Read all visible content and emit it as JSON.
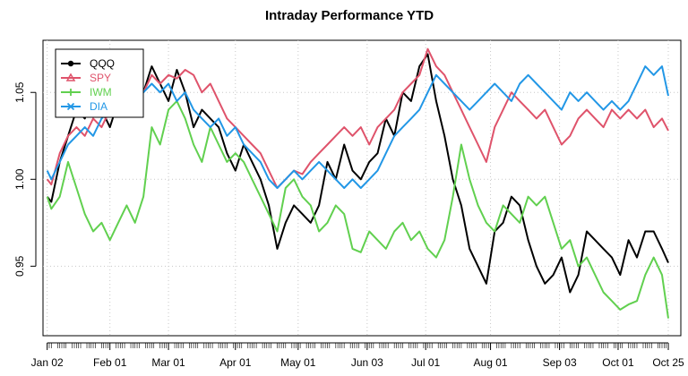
{
  "chart_data": {
    "type": "line",
    "title": "Intraday Performance YTD",
    "xlabel": "",
    "ylabel": "",
    "x_tick_labels": [
      "Jan 02",
      "Feb 01",
      "Mar 01",
      "Apr 01",
      "May 01",
      "Jun 03",
      "Jul 01",
      "Aug 01",
      "Sep 03",
      "Oct 01",
      "Oct 25"
    ],
    "x_tick_days": [
      2,
      32,
      60,
      92,
      122,
      155,
      183,
      214,
      247,
      275,
      299
    ],
    "xlim": [
      0,
      305
    ],
    "y_ticks": [
      0.95,
      1.0,
      1.05
    ],
    "y_tick_labels": [
      "0.95",
      "1.00",
      "1.05"
    ],
    "ylim": [
      0.91,
      1.08
    ],
    "grid": true,
    "legend_position": "top-left",
    "series": [
      {
        "name": "QQQ",
        "color": "#000000",
        "marker": "circle",
        "x": [
          2,
          4,
          8,
          12,
          16,
          20,
          24,
          28,
          32,
          36,
          40,
          44,
          48,
          52,
          56,
          60,
          64,
          68,
          72,
          76,
          80,
          84,
          88,
          92,
          96,
          100,
          104,
          108,
          112,
          116,
          120,
          124,
          128,
          132,
          136,
          140,
          144,
          148,
          152,
          156,
          160,
          164,
          168,
          172,
          176,
          180,
          184,
          188,
          192,
          196,
          200,
          204,
          208,
          212,
          216,
          220,
          224,
          228,
          232,
          236,
          240,
          244,
          248,
          252,
          256,
          260,
          264,
          268,
          272,
          276,
          280,
          284,
          288,
          292,
          296,
          299
        ],
        "y": [
          0.99,
          0.987,
          1.01,
          1.025,
          1.04,
          1.035,
          1.05,
          1.04,
          1.03,
          1.045,
          1.05,
          1.06,
          1.05,
          1.065,
          1.055,
          1.045,
          1.063,
          1.05,
          1.03,
          1.04,
          1.035,
          1.03,
          1.015,
          1.005,
          1.02,
          1.01,
          1.0,
          0.985,
          0.96,
          0.975,
          0.985,
          0.98,
          0.975,
          0.985,
          1.01,
          1.0,
          1.02,
          1.005,
          1.0,
          1.01,
          1.015,
          1.035,
          1.025,
          1.05,
          1.045,
          1.065,
          1.072,
          1.045,
          1.025,
          1.0,
          0.985,
          0.96,
          0.95,
          0.94,
          0.97,
          0.975,
          0.99,
          0.985,
          0.965,
          0.95,
          0.94,
          0.945,
          0.955,
          0.935,
          0.945,
          0.97,
          0.965,
          0.96,
          0.955,
          0.945,
          0.965,
          0.955,
          0.97,
          0.97,
          0.96,
          0.952
        ]
      },
      {
        "name": "SPY",
        "color": "#DF536B",
        "marker": "triangle",
        "x": [
          2,
          4,
          8,
          12,
          16,
          20,
          24,
          28,
          32,
          36,
          40,
          44,
          48,
          52,
          56,
          60,
          64,
          68,
          72,
          76,
          80,
          84,
          88,
          92,
          96,
          100,
          104,
          108,
          112,
          116,
          120,
          124,
          128,
          132,
          136,
          140,
          144,
          148,
          152,
          156,
          160,
          164,
          168,
          172,
          176,
          180,
          184,
          188,
          192,
          196,
          200,
          204,
          208,
          212,
          216,
          220,
          224,
          228,
          232,
          236,
          240,
          244,
          248,
          252,
          256,
          260,
          264,
          268,
          272,
          276,
          280,
          284,
          288,
          292,
          296,
          299
        ],
        "y": [
          1.0,
          0.997,
          1.015,
          1.025,
          1.03,
          1.025,
          1.035,
          1.03,
          1.04,
          1.045,
          1.04,
          1.05,
          1.05,
          1.06,
          1.055,
          1.06,
          1.058,
          1.063,
          1.06,
          1.05,
          1.055,
          1.045,
          1.035,
          1.03,
          1.025,
          1.02,
          1.015,
          1.005,
          0.995,
          1.0,
          1.005,
          1.003,
          1.01,
          1.015,
          1.02,
          1.025,
          1.03,
          1.025,
          1.03,
          1.02,
          1.03,
          1.035,
          1.04,
          1.05,
          1.055,
          1.06,
          1.075,
          1.065,
          1.06,
          1.05,
          1.04,
          1.03,
          1.02,
          1.01,
          1.03,
          1.04,
          1.05,
          1.045,
          1.04,
          1.035,
          1.04,
          1.03,
          1.02,
          1.025,
          1.035,
          1.04,
          1.035,
          1.03,
          1.04,
          1.035,
          1.04,
          1.035,
          1.04,
          1.03,
          1.035,
          1.028
        ]
      },
      {
        "name": "IWM",
        "color": "#61D04F",
        "marker": "plus",
        "x": [
          2,
          4,
          8,
          12,
          16,
          20,
          24,
          28,
          32,
          36,
          40,
          44,
          48,
          52,
          56,
          60,
          64,
          68,
          72,
          76,
          80,
          84,
          88,
          92,
          96,
          100,
          104,
          108,
          112,
          116,
          120,
          124,
          128,
          132,
          136,
          140,
          144,
          148,
          152,
          156,
          160,
          164,
          168,
          172,
          176,
          180,
          184,
          188,
          192,
          196,
          200,
          204,
          208,
          212,
          216,
          220,
          224,
          228,
          232,
          236,
          240,
          244,
          248,
          252,
          256,
          260,
          264,
          268,
          272,
          276,
          280,
          284,
          288,
          292,
          296,
          299
        ],
        "y": [
          0.99,
          0.983,
          0.99,
          1.01,
          0.995,
          0.98,
          0.97,
          0.975,
          0.965,
          0.975,
          0.985,
          0.975,
          0.99,
          1.03,
          1.02,
          1.04,
          1.045,
          1.035,
          1.02,
          1.01,
          1.03,
          1.02,
          1.01,
          1.015,
          1.01,
          1.0,
          0.99,
          0.98,
          0.97,
          0.995,
          1.0,
          0.99,
          0.985,
          0.97,
          0.975,
          0.985,
          0.98,
          0.96,
          0.958,
          0.97,
          0.965,
          0.96,
          0.97,
          0.975,
          0.965,
          0.97,
          0.96,
          0.955,
          0.965,
          0.99,
          1.02,
          1.0,
          0.985,
          0.975,
          0.97,
          0.985,
          0.98,
          0.975,
          0.99,
          0.985,
          0.99,
          0.975,
          0.96,
          0.965,
          0.95,
          0.955,
          0.945,
          0.935,
          0.93,
          0.925,
          0.928,
          0.93,
          0.945,
          0.955,
          0.945,
          0.92
        ]
      },
      {
        "name": "DIA",
        "color": "#2297E6",
        "marker": "x",
        "x": [
          2,
          4,
          8,
          12,
          16,
          20,
          24,
          28,
          32,
          36,
          40,
          44,
          48,
          52,
          56,
          60,
          64,
          68,
          72,
          76,
          80,
          84,
          88,
          92,
          96,
          100,
          104,
          108,
          112,
          116,
          120,
          124,
          128,
          132,
          136,
          140,
          144,
          148,
          152,
          156,
          160,
          164,
          168,
          172,
          176,
          180,
          184,
          188,
          192,
          196,
          200,
          204,
          208,
          212,
          216,
          220,
          224,
          228,
          232,
          236,
          240,
          244,
          248,
          252,
          256,
          260,
          264,
          268,
          272,
          276,
          280,
          284,
          288,
          292,
          296,
          299
        ],
        "y": [
          1.005,
          1.0,
          1.01,
          1.02,
          1.025,
          1.03,
          1.025,
          1.035,
          1.04,
          1.045,
          1.04,
          1.045,
          1.05,
          1.055,
          1.05,
          1.055,
          1.045,
          1.05,
          1.04,
          1.035,
          1.03,
          1.035,
          1.025,
          1.03,
          1.02,
          1.015,
          1.01,
          1.0,
          0.995,
          1.0,
          1.005,
          1.0,
          1.005,
          1.01,
          1.005,
          1.0,
          0.995,
          1.0,
          0.995,
          1.0,
          1.005,
          1.015,
          1.025,
          1.03,
          1.035,
          1.04,
          1.05,
          1.06,
          1.055,
          1.05,
          1.045,
          1.04,
          1.045,
          1.05,
          1.055,
          1.05,
          1.045,
          1.055,
          1.06,
          1.055,
          1.05,
          1.045,
          1.04,
          1.05,
          1.045,
          1.05,
          1.045,
          1.04,
          1.045,
          1.04,
          1.045,
          1.055,
          1.065,
          1.06,
          1.065,
          1.048
        ]
      }
    ]
  }
}
